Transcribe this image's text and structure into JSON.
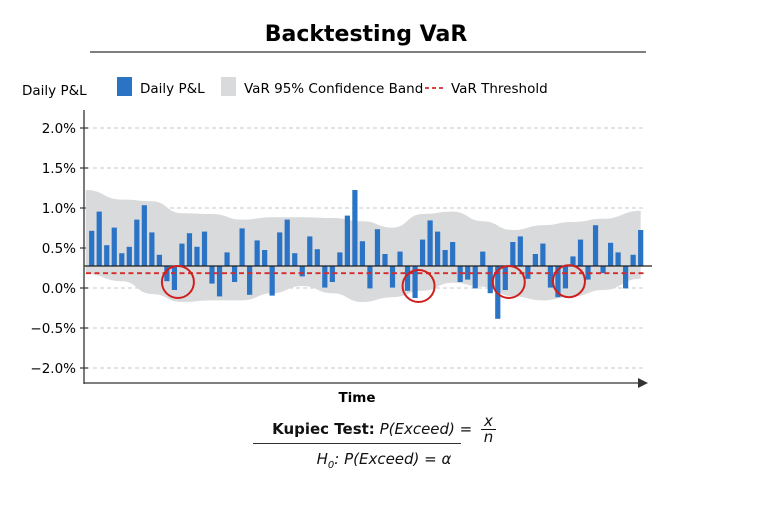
{
  "chart_data": {
    "type": "bar",
    "title": "Backtesting VaR",
    "xlabel": "Time",
    "ylabel": "Daily P&L",
    "yticks": [
      "2.0%",
      "1.5%",
      "1.0%",
      "0.5%",
      "0.0%",
      "-0.5%",
      "-2.0%"
    ],
    "grid": true,
    "legend": {
      "placement": "top",
      "entries": [
        {
          "label": "Daily P&L",
          "kind": "bar"
        },
        {
          "label": "VaR 95% Confidence Band",
          "kind": "band"
        },
        {
          "label": "VaR Threshold",
          "kind": "dashed-line"
        }
      ]
    },
    "series": [
      {
        "name": "Daily P&L",
        "values": [
          0.44,
          0.68,
          0.26,
          0.48,
          0.16,
          0.24,
          0.58,
          0.76,
          0.42,
          0.14,
          -0.19,
          -0.3,
          0.28,
          0.41,
          0.24,
          0.43,
          -0.22,
          -0.38,
          0.17,
          -0.2,
          0.47,
          -0.36,
          0.32,
          0.2,
          -0.37,
          0.42,
          0.58,
          0.16,
          -0.13,
          0.37,
          0.21,
          -0.27,
          -0.2,
          0.17,
          0.63,
          0.95,
          0.31,
          -0.28,
          0.46,
          0.15,
          -0.27,
          0.18,
          -0.31,
          -0.4,
          0.33,
          0.57,
          0.43,
          0.2,
          0.3,
          -0.2,
          -0.17,
          -0.28,
          0.18,
          -0.34,
          -0.66,
          -0.3,
          0.3,
          0.37,
          -0.16,
          0.15,
          0.28,
          -0.27,
          -0.39,
          -0.28,
          0.12,
          0.33,
          -0.17,
          0.51,
          -0.09,
          0.29,
          0.17,
          -0.28,
          0.14,
          0.45
        ]
      }
    ],
    "band": {
      "name": "VaR 95% Confidence Band",
      "t": [
        0,
        4,
        8,
        12,
        16,
        20,
        24,
        28,
        32,
        36,
        40,
        44,
        48,
        52,
        56,
        60,
        64,
        68,
        73
      ],
      "upper": [
        0.95,
        0.83,
        0.81,
        0.66,
        0.65,
        0.58,
        0.61,
        0.61,
        0.6,
        0.56,
        0.48,
        0.65,
        0.68,
        0.56,
        0.45,
        0.51,
        0.55,
        0.59,
        0.69
      ],
      "lower": [
        -0.1,
        -0.19,
        -0.35,
        -0.45,
        -0.43,
        -0.43,
        -0.34,
        -0.25,
        -0.34,
        -0.45,
        -0.39,
        -0.31,
        -0.21,
        -0.26,
        -0.38,
        -0.43,
        -0.38,
        -0.3,
        -0.16
      ]
    },
    "var_threshold": -0.09,
    "exceedances_circled": [
      11,
      43,
      55,
      63
    ],
    "colors": {
      "bar": "#2b73c5",
      "band": "#d9dadc",
      "threshold": "#d42a2a",
      "circle": "#d01f1f"
    }
  },
  "formula": {
    "label": "Kupiec Test:",
    "lhs": "P(Exceed) =",
    "num": "x",
    "den": "n",
    "h0_h": "H",
    "h0_sub": "0",
    "h0_rest": ": P(Exceed) = α"
  }
}
